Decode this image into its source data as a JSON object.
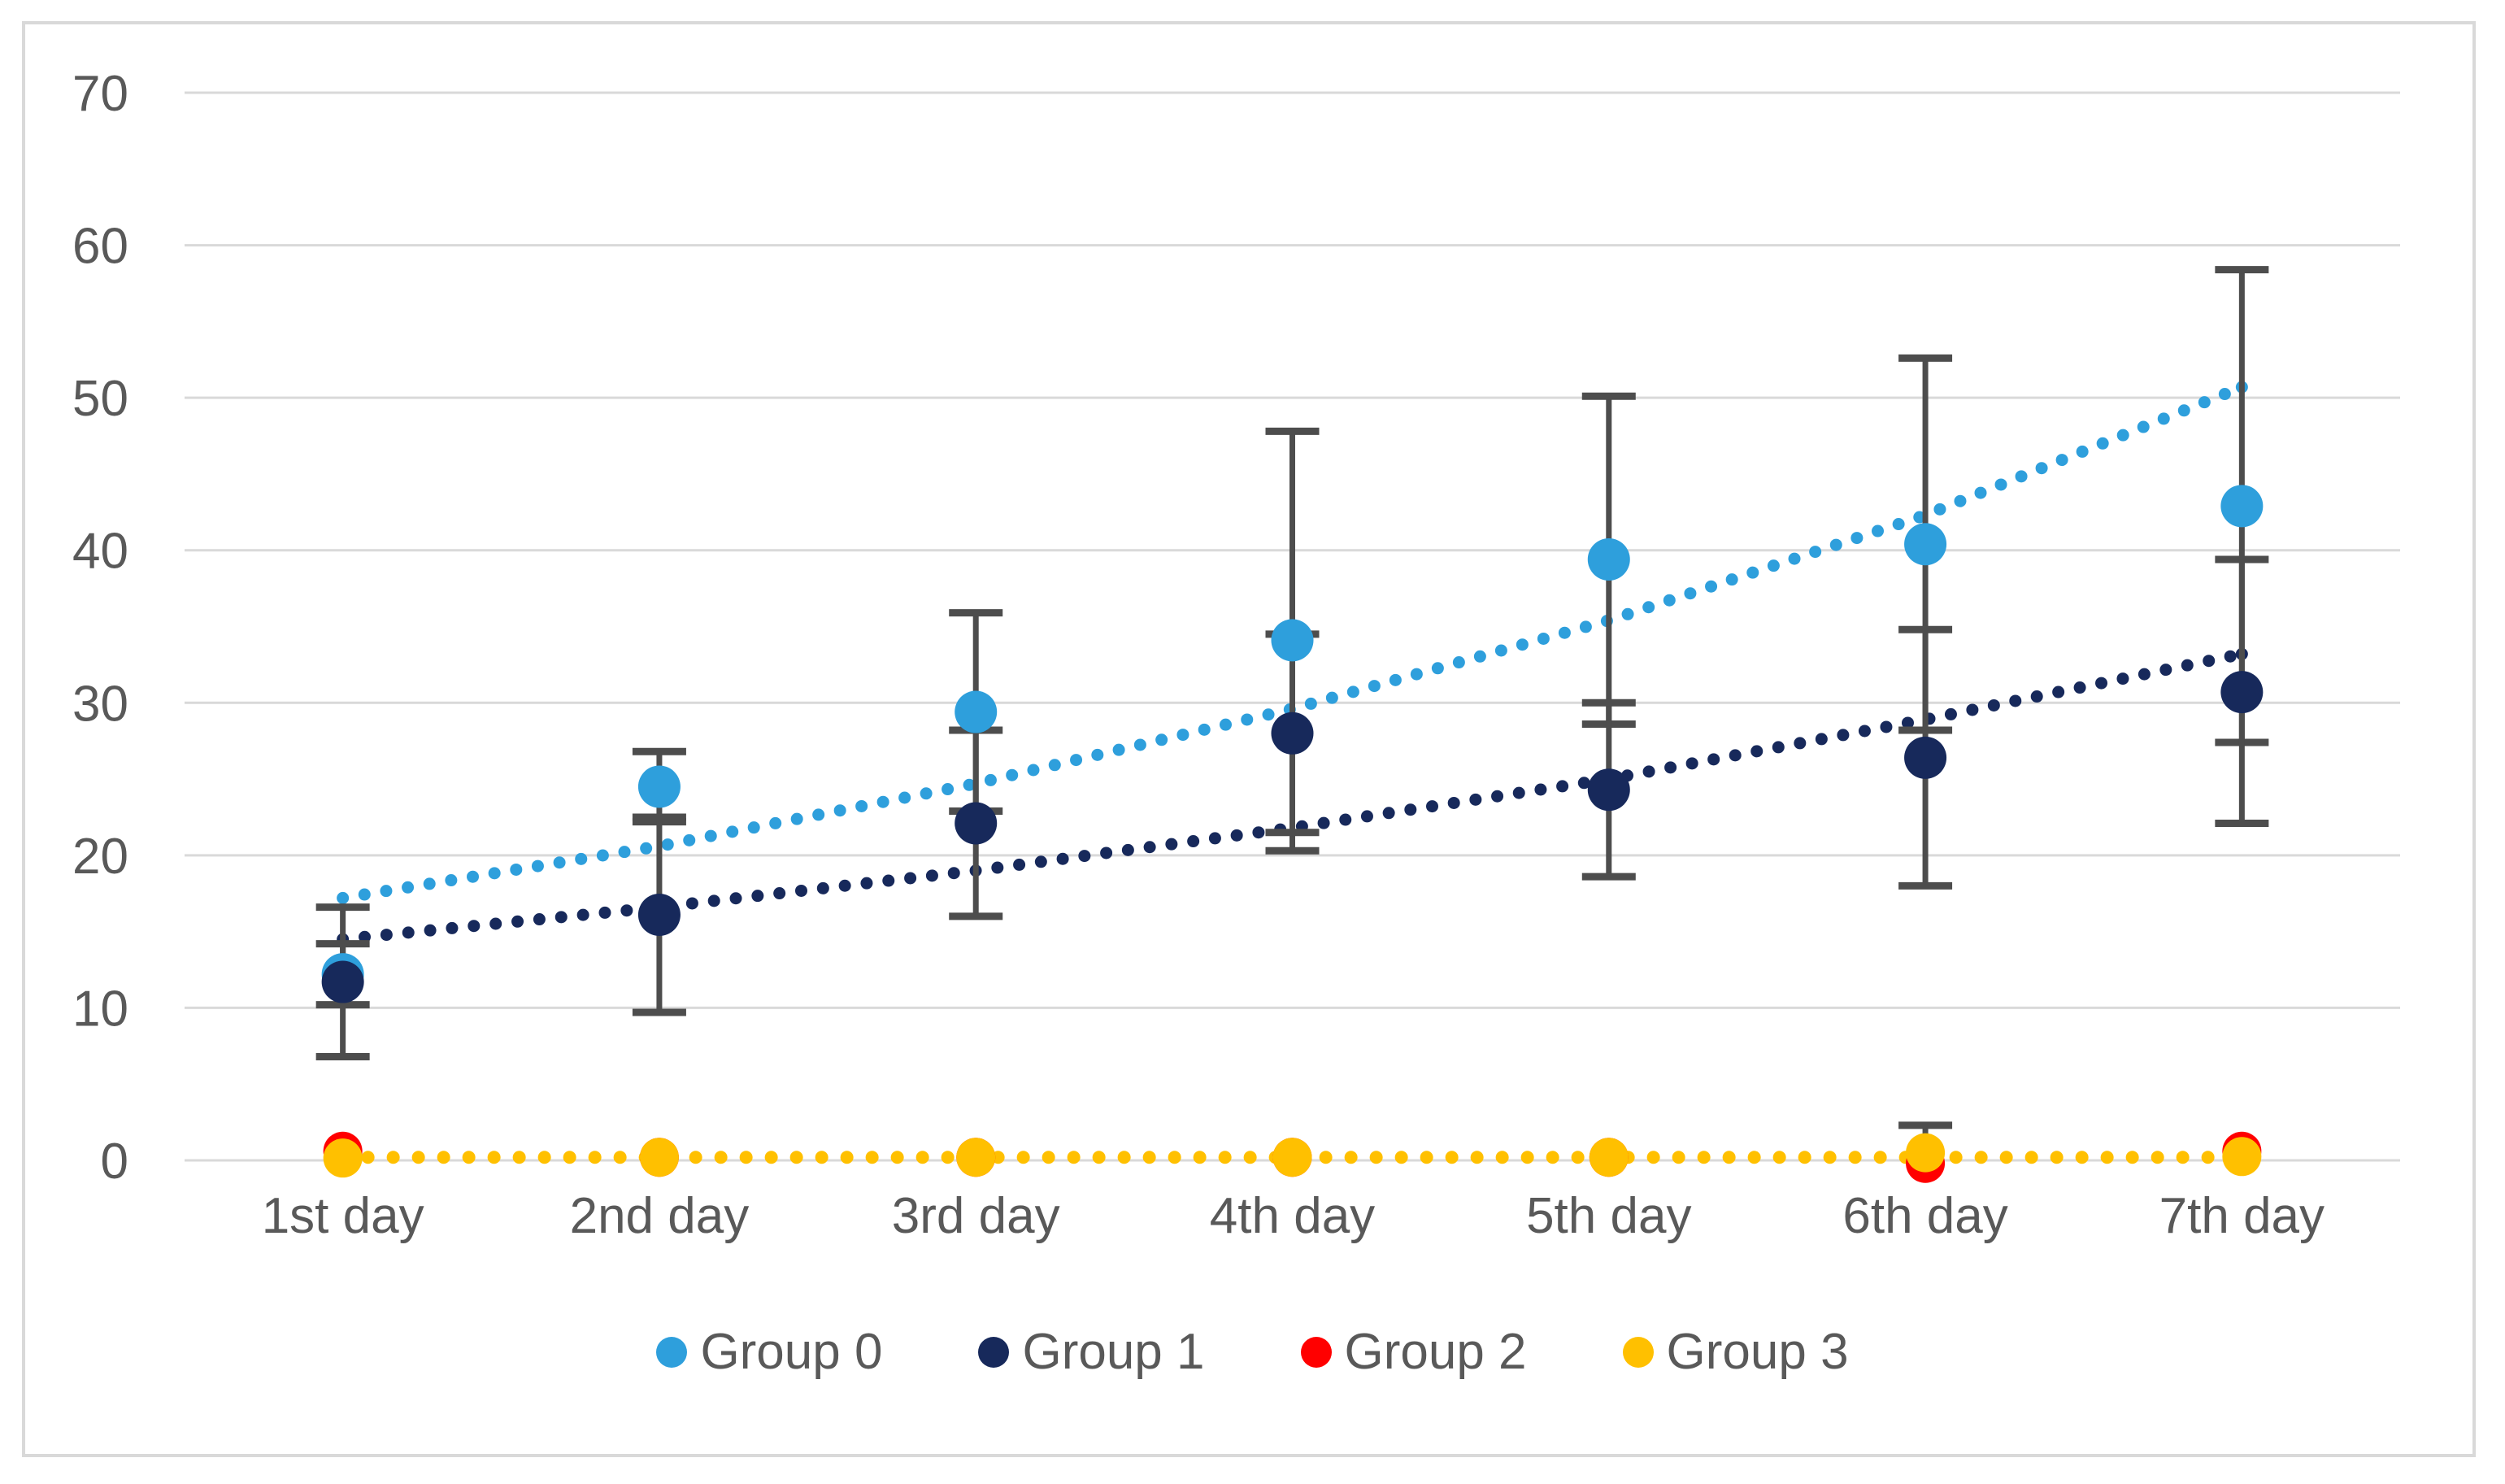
{
  "figure": {
    "background": "#FFFFFF",
    "border_color": "#D9D9D9",
    "grid_color": "#D9D9D9",
    "text_color": "#595959",
    "error_bar_color": "#4D4D4D"
  },
  "y_axis": {
    "tick_labels": [
      "0",
      "10",
      "20",
      "30",
      "40",
      "50",
      "60",
      "70"
    ],
    "min": 0,
    "max": 70,
    "step": 10
  },
  "x_axis": {
    "categories": [
      "1st day",
      "2nd day",
      "3rd day",
      "4th day",
      "5th day",
      "6th day",
      "7th day"
    ]
  },
  "legend": {
    "items": [
      {
        "label": "Group 0",
        "color": "#2E9FDC"
      },
      {
        "label": "Group 1",
        "color": "#17295B"
      },
      {
        "label": "Group 2",
        "color": "#FF0000"
      },
      {
        "label": "Group 3",
        "color": "#FFC000"
      }
    ]
  },
  "chart_data": {
    "type": "scatter",
    "title": "",
    "xlabel": "",
    "ylabel": "",
    "ylim": [
      0,
      70
    ],
    "grid": true,
    "legend_position": "bottom",
    "categories": [
      "1st day",
      "2nd day",
      "3rd day",
      "4th day",
      "5th day",
      "6th day",
      "7th day"
    ],
    "series": [
      {
        "name": "Group 0",
        "color": "#2E9FDC",
        "marker_radius": 26,
        "values": [
          12.2,
          24.5,
          29.4,
          34.1,
          39.4,
          40.4,
          42.9
        ],
        "err_low": [
          10.2,
          22.2,
          22.9,
          20.3,
          28.6,
          28.2,
          27.4
        ],
        "err_high": [
          14.2,
          26.8,
          35.9,
          47.8,
          50.1,
          52.6,
          58.4
        ],
        "trend": [
          17.2,
          20.6,
          24.7,
          29.6,
          35.4,
          42.3,
          50.7
        ],
        "trend_style": "dotted"
      },
      {
        "name": "Group 1",
        "color": "#17295B",
        "marker_radius": 26,
        "values": [
          11.7,
          16.1,
          22.1,
          28.0,
          24.3,
          26.4,
          30.7
        ],
        "err_low": [
          6.8,
          9.7,
          16.0,
          21.5,
          18.6,
          18.0,
          22.1
        ],
        "err_high": [
          16.6,
          22.5,
          28.2,
          34.5,
          30.0,
          34.8,
          39.4
        ],
        "trend": [
          14.5,
          16.6,
          19.0,
          21.8,
          25.0,
          28.9,
          33.2
        ],
        "trend_style": "dotted"
      },
      {
        "name": "Group 2",
        "color": "#FF0000",
        "marker_radius": 24,
        "values": [
          0.6,
          0.2,
          0.2,
          0.2,
          0.2,
          -0.2,
          0.6
        ],
        "err_low": null,
        "err_high": null,
        "trend": null,
        "trend_style": "hidden"
      },
      {
        "name": "Group 3",
        "color": "#FFC000",
        "marker_radius": 24,
        "values": [
          0.15,
          0.2,
          0.2,
          0.2,
          0.2,
          0.5,
          0.25
        ],
        "err_low": [
          null,
          null,
          null,
          null,
          null,
          null,
          null
        ],
        "err_high": [
          null,
          null,
          null,
          null,
          null,
          2.3,
          null
        ],
        "trend": [
          0.2,
          0.2,
          0.2,
          0.2,
          0.2,
          0.2,
          0.2
        ],
        "trend_style": "dotted"
      }
    ]
  }
}
